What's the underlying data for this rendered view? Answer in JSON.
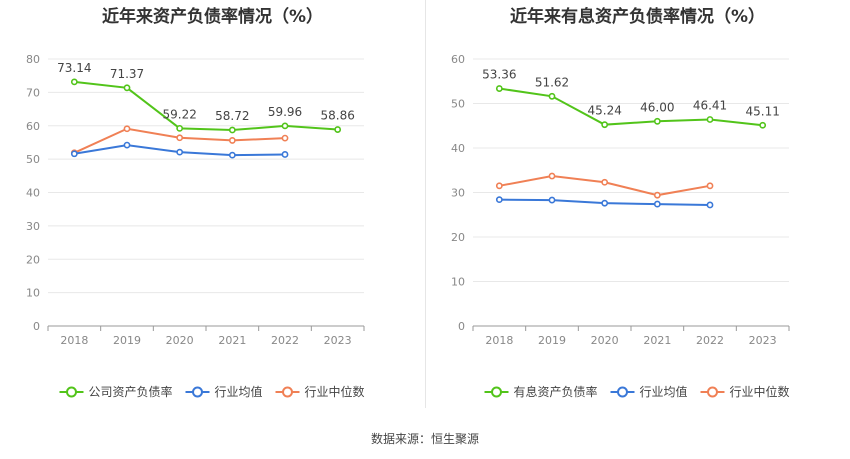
{
  "footer": "数据来源：恒生聚源",
  "chart_data": [
    {
      "type": "line",
      "title": "近年来资产负债率情况（%）",
      "categories": [
        "2018",
        "2019",
        "2020",
        "2021",
        "2022",
        "2023"
      ],
      "ylim": [
        0,
        80
      ],
      "yticks": [
        0,
        10,
        20,
        30,
        40,
        50,
        60,
        70,
        80
      ],
      "grid": true,
      "legend_position": "bottom",
      "series": [
        {
          "name": "公司资产负债率",
          "color": "#52c41a",
          "values": [
            73.14,
            71.37,
            59.22,
            58.72,
            59.96,
            58.86
          ],
          "labels": [
            "73.14",
            "71.37",
            "59.22",
            "58.72",
            "59.96",
            "58.86"
          ]
        },
        {
          "name": "行业均值",
          "color": "#3a78d8",
          "values": [
            51.6,
            54.2,
            52.1,
            51.2,
            51.4,
            null
          ]
        },
        {
          "name": "行业中位数",
          "color": "#f08055",
          "values": [
            51.9,
            59.1,
            56.4,
            55.6,
            56.3,
            null
          ]
        }
      ]
    },
    {
      "type": "line",
      "title": "近年来有息资产负债率情况（%）",
      "categories": [
        "2018",
        "2019",
        "2020",
        "2021",
        "2022",
        "2023"
      ],
      "ylim": [
        0,
        60
      ],
      "yticks": [
        0,
        10,
        20,
        30,
        40,
        50,
        60
      ],
      "grid": true,
      "legend_position": "bottom",
      "series": [
        {
          "name": "有息资产负债率",
          "color": "#52c41a",
          "values": [
            53.36,
            51.62,
            45.24,
            46.0,
            46.41,
            45.11
          ],
          "labels": [
            "53.36",
            "51.62",
            "45.24",
            "46.00",
            "46.41",
            "45.11"
          ]
        },
        {
          "name": "行业均值",
          "color": "#3a78d8",
          "values": [
            28.4,
            28.3,
            27.6,
            27.4,
            27.2,
            null
          ]
        },
        {
          "name": "行业中位数",
          "color": "#f08055",
          "values": [
            31.5,
            33.7,
            32.3,
            29.4,
            31.5,
            null
          ]
        }
      ]
    }
  ]
}
